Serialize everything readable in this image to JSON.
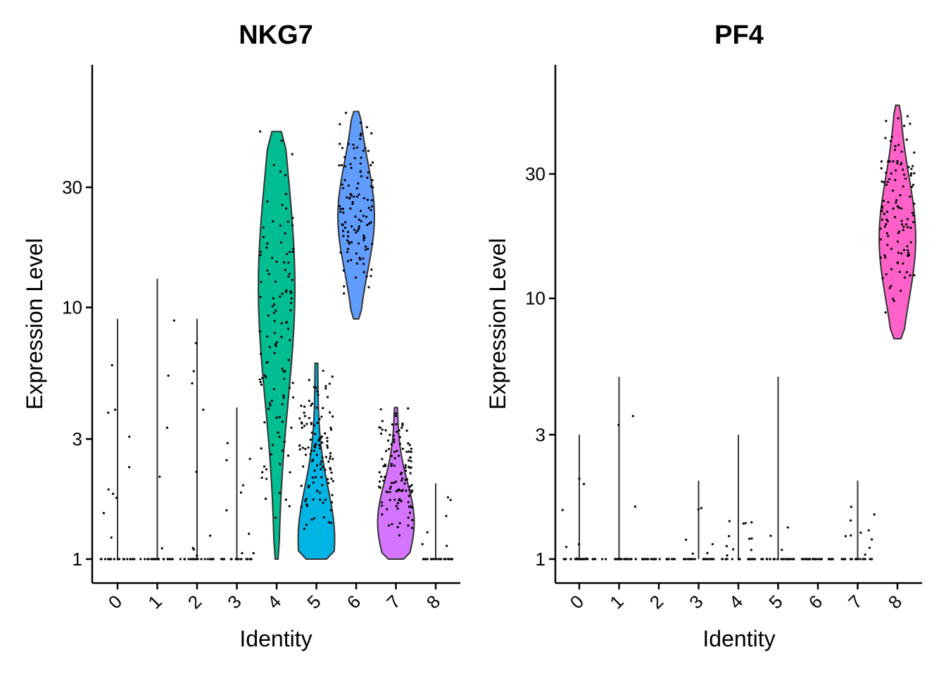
{
  "chart_data": [
    {
      "type": "violin",
      "title": "NKG7",
      "xlabel": "Identity",
      "ylabel": "Expression Level",
      "y_scale": "log",
      "y_ticks": [
        1,
        3,
        10,
        30
      ],
      "y_tick_labels": [
        "1",
        "3",
        "10",
        "30"
      ],
      "ylim": [
        0.9,
        70
      ],
      "categories": [
        "0",
        "1",
        "2",
        "3",
        "4",
        "5",
        "6",
        "7",
        "8"
      ],
      "series": [
        {
          "category": "0",
          "min": 1,
          "max": 9,
          "median": 1,
          "fill": "none"
        },
        {
          "category": "1",
          "min": 1,
          "max": 13,
          "median": 1,
          "fill": "none"
        },
        {
          "category": "2",
          "min": 1,
          "max": 9,
          "median": 1,
          "fill": "none"
        },
        {
          "category": "3",
          "min": 1,
          "max": 4,
          "median": 1,
          "fill": "none"
        },
        {
          "category": "4",
          "min": 1,
          "max": 50,
          "median": 12,
          "fill": "#00BE91"
        },
        {
          "category": "5",
          "min": 1,
          "max": 6,
          "median": 1.2,
          "fill": "#00B4E4"
        },
        {
          "category": "6",
          "min": 9,
          "max": 60,
          "median": 23,
          "fill": "#619CFF"
        },
        {
          "category": "7",
          "min": 1,
          "max": 4,
          "median": 1.4,
          "fill": "#D575FE"
        },
        {
          "category": "8",
          "min": 1,
          "max": 2,
          "median": 1,
          "fill": "none"
        }
      ]
    },
    {
      "type": "violin",
      "title": "PF4",
      "xlabel": "Identity",
      "ylabel": "Expression Level",
      "y_scale": "log",
      "y_ticks": [
        1,
        3,
        10,
        30
      ],
      "y_tick_labels": [
        "1",
        "3",
        "10",
        "30"
      ],
      "ylim": [
        0.9,
        70
      ],
      "categories": [
        "0",
        "1",
        "2",
        "3",
        "4",
        "5",
        "6",
        "7",
        "8"
      ],
      "series": [
        {
          "category": "0",
          "min": 1,
          "max": 3,
          "median": 1,
          "fill": "none"
        },
        {
          "category": "1",
          "min": 1,
          "max": 5,
          "median": 1,
          "fill": "none"
        },
        {
          "category": "2",
          "min": 1,
          "max": 1,
          "median": 1,
          "fill": "none"
        },
        {
          "category": "3",
          "min": 1,
          "max": 2,
          "median": 1,
          "fill": "none"
        },
        {
          "category": "4",
          "min": 1,
          "max": 3,
          "median": 1,
          "fill": "none"
        },
        {
          "category": "5",
          "min": 1,
          "max": 5,
          "median": 1,
          "fill": "none"
        },
        {
          "category": "6",
          "min": 1,
          "max": 1,
          "median": 1,
          "fill": "none"
        },
        {
          "category": "7",
          "min": 1,
          "max": 2,
          "median": 1,
          "fill": "none"
        },
        {
          "category": "8",
          "min": 7,
          "max": 55,
          "median": 17,
          "fill": "#FF61C9"
        }
      ]
    }
  ]
}
